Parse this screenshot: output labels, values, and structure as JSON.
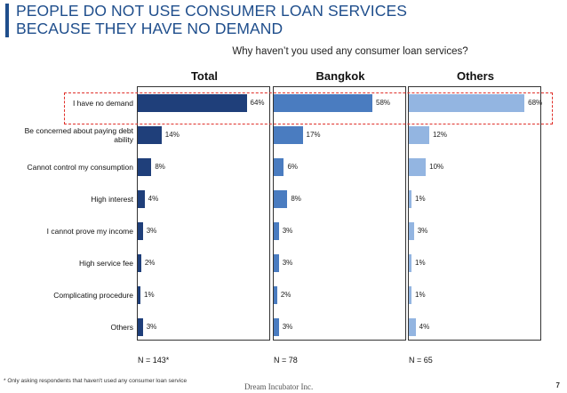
{
  "title": {
    "line1": "PEOPLE DO NOT USE CONSUMER LOAN SERVICES",
    "line2": "BECAUSE THEY HAVE NO DEMAND"
  },
  "question": "Why haven’t you used any consumer loan services?",
  "chart_data": {
    "type": "bar",
    "orientation": "horizontal",
    "categories": [
      "I have no demand",
      "Be concerned about paying debt ability",
      "Cannot control my consumption",
      "High interest",
      "I cannot prove my income",
      "High service fee",
      "Complicating procedure",
      "Others"
    ],
    "category_lines": [
      [
        "I have no demand"
      ],
      [
        "Be concerned about paying debt",
        "ability"
      ],
      [
        "Cannot control my consumption"
      ],
      [
        "High interest"
      ],
      [
        "I cannot prove my income"
      ],
      [
        "High service fee"
      ],
      [
        "Complicating procedure"
      ],
      [
        "Others"
      ]
    ],
    "series": [
      {
        "name": "Total",
        "values": [
          64,
          14,
          8,
          4,
          3,
          2,
          1,
          3
        ],
        "color": "#1f3f7a",
        "n": "N = 143*"
      },
      {
        "name": "Bangkok",
        "values": [
          58,
          17,
          6,
          8,
          3,
          3,
          2,
          3
        ],
        "color": "#4a7cc0",
        "n": "N = 78"
      },
      {
        "name": "Others",
        "values": [
          68,
          12,
          10,
          1,
          3,
          1,
          1,
          4
        ],
        "color": "#93b5e1",
        "n": "N = 65"
      }
    ],
    "value_suffix": "%",
    "xlim": [
      0,
      70
    ],
    "highlight_category": "I have no demand"
  },
  "footnote": "* Only asking respondents that haven't used any consumer loan service",
  "company": "Dream Incubator Inc.",
  "page_number": "7"
}
